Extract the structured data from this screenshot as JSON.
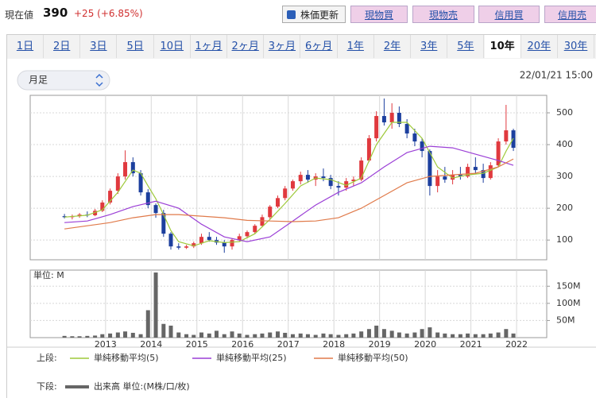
{
  "header": {
    "label": "現在値",
    "price": "390",
    "change": "+25 (+6.85%)",
    "buttons": [
      "株価更新",
      "現物買",
      "現物売",
      "信用買",
      "信用売"
    ]
  },
  "tabs": [
    "1日",
    "2日",
    "3日",
    "5日",
    "10日",
    "1ヶ月",
    "2ヶ月",
    "3ヶ月",
    "6ヶ月",
    "1年",
    "2年",
    "3年",
    "5年",
    "10年",
    "20年",
    "30年"
  ],
  "selected_tab": 13,
  "interval": "月足",
  "timestamp": "22/01/21 15:00",
  "chart_data": [
    {
      "type": "candlestick",
      "up_color": "#e0393e",
      "down_color": "#1c3f9e",
      "xlim": [
        2011.35,
        2022.66
      ],
      "ylim": [
        38,
        555
      ],
      "yticks": [
        100,
        200,
        300,
        400,
        500
      ],
      "grid": true,
      "x": [
        2012.1,
        2012.27,
        2012.43,
        2012.6,
        2012.77,
        2012.93,
        2013.1,
        2013.27,
        2013.43,
        2013.6,
        2013.77,
        2013.93,
        2014.1,
        2014.27,
        2014.43,
        2014.6,
        2014.77,
        2014.93,
        2015.1,
        2015.27,
        2015.43,
        2015.6,
        2015.77,
        2015.93,
        2016.1,
        2016.27,
        2016.43,
        2016.6,
        2016.77,
        2016.93,
        2017.1,
        2017.27,
        2017.43,
        2017.6,
        2017.77,
        2017.93,
        2018.1,
        2018.27,
        2018.43,
        2018.6,
        2018.77,
        2018.93,
        2019.1,
        2019.27,
        2019.43,
        2019.6,
        2019.77,
        2019.93,
        2020.1,
        2020.27,
        2020.43,
        2020.6,
        2020.77,
        2020.93,
        2021.1,
        2021.27,
        2021.43,
        2021.6,
        2021.77,
        2021.93
      ],
      "open": [
        175,
        172,
        175,
        180,
        178,
        192,
        218,
        255,
        300,
        345,
        310,
        250,
        210,
        185,
        120,
        80,
        76,
        80,
        90,
        110,
        100,
        92,
        80,
        100,
        112,
        125,
        145,
        172,
        205,
        232,
        262,
        285,
        305,
        290,
        300,
        295,
        270,
        265,
        285,
        290,
        350,
        420,
        490,
        470,
        500,
        465,
        435,
        410,
        380,
        270,
        300,
        290,
        305,
        300,
        330,
        320,
        295,
        335,
        410,
        445
      ],
      "high": [
        182,
        180,
        185,
        190,
        198,
        225,
        262,
        310,
        382,
        360,
        320,
        260,
        215,
        195,
        125,
        90,
        85,
        95,
        120,
        125,
        110,
        100,
        105,
        120,
        130,
        150,
        180,
        210,
        240,
        270,
        290,
        315,
        320,
        310,
        325,
        305,
        285,
        295,
        300,
        360,
        430,
        505,
        545,
        530,
        520,
        480,
        450,
        420,
        385,
        320,
        330,
        320,
        330,
        340,
        360,
        340,
        345,
        420,
        525,
        450
      ],
      "low": [
        168,
        165,
        170,
        172,
        175,
        188,
        212,
        245,
        290,
        300,
        240,
        200,
        170,
        110,
        70,
        70,
        72,
        75,
        85,
        95,
        85,
        60,
        70,
        95,
        105,
        120,
        140,
        165,
        200,
        225,
        255,
        275,
        280,
        270,
        285,
        260,
        240,
        255,
        270,
        285,
        345,
        410,
        460,
        450,
        455,
        420,
        395,
        360,
        240,
        250,
        280,
        275,
        290,
        295,
        310,
        280,
        290,
        330,
        400,
        380
      ],
      "close": [
        172,
        175,
        180,
        178,
        192,
        218,
        255,
        300,
        345,
        310,
        250,
        210,
        185,
        120,
        80,
        76,
        80,
        90,
        110,
        100,
        92,
        80,
        100,
        112,
        125,
        145,
        172,
        205,
        232,
        262,
        285,
        305,
        290,
        300,
        295,
        270,
        265,
        285,
        290,
        350,
        420,
        490,
        470,
        500,
        465,
        435,
        410,
        380,
        270,
        300,
        290,
        305,
        300,
        330,
        320,
        295,
        335,
        410,
        445,
        390
      ],
      "legend_prefix": "上段:",
      "series": [
        {
          "name": "単純移動平均(5)",
          "color": "#9ec93a",
          "x": [
            2012.1,
            2012.6,
            2012.93,
            2013.27,
            2013.6,
            2013.77,
            2013.93,
            2014.1,
            2014.27,
            2014.43,
            2014.6,
            2014.93,
            2015.27,
            2015.6,
            2015.93,
            2016.27,
            2016.6,
            2016.93,
            2017.27,
            2017.6,
            2017.93,
            2018.27,
            2018.6,
            2018.93,
            2019.27,
            2019.6,
            2019.93,
            2020.27,
            2020.6,
            2020.93,
            2021.27,
            2021.6,
            2021.77,
            2021.93
          ],
          "values": [
            172,
            178,
            195,
            250,
            320,
            310,
            270,
            230,
            180,
            130,
            95,
            82,
            98,
            92,
            95,
            120,
            165,
            215,
            270,
            295,
            290,
            272,
            295,
            400,
            470,
            470,
            420,
            330,
            295,
            305,
            310,
            330,
            380,
            420
          ]
        },
        {
          "name": "単純移動平均(25)",
          "color": "#9b3fd6",
          "x": [
            2012.1,
            2012.6,
            2013.1,
            2013.6,
            2014.1,
            2014.6,
            2015.1,
            2015.6,
            2016.1,
            2016.6,
            2017.1,
            2017.6,
            2018.1,
            2018.6,
            2019.1,
            2019.6,
            2020.1,
            2020.6,
            2021.1,
            2021.6,
            2021.93
          ],
          "values": [
            155,
            160,
            180,
            205,
            222,
            200,
            150,
            110,
            95,
            110,
            160,
            210,
            250,
            280,
            330,
            375,
            395,
            390,
            370,
            350,
            335
          ]
        },
        {
          "name": "単純移動平均(50)",
          "color": "#e07a4a",
          "x": [
            2012.1,
            2012.6,
            2013.1,
            2013.6,
            2014.1,
            2014.6,
            2015.1,
            2015.6,
            2016.1,
            2016.6,
            2017.1,
            2017.6,
            2018.1,
            2018.6,
            2019.1,
            2019.6,
            2020.1,
            2020.6,
            2021.1,
            2021.6,
            2021.93
          ],
          "values": [
            135,
            145,
            155,
            170,
            180,
            180,
            175,
            170,
            162,
            160,
            158,
            160,
            170,
            200,
            240,
            280,
            300,
            305,
            310,
            330,
            355
          ]
        }
      ]
    },
    {
      "type": "bar",
      "color": "#666666",
      "axis_unit_label": "単位: M",
      "xlim": [
        2011.35,
        2022.66
      ],
      "xticks": [
        2013,
        2014,
        2015,
        2016,
        2017,
        2018,
        2019,
        2020,
        2021,
        2022
      ],
      "ylim": [
        0,
        197
      ],
      "yticks": [
        {
          "value": 50,
          "label": "50M"
        },
        {
          "value": 100,
          "label": "100M"
        },
        {
          "value": 150,
          "label": "150M"
        }
      ],
      "grid": true,
      "x": [
        2012.1,
        2012.27,
        2012.43,
        2012.6,
        2012.77,
        2012.93,
        2013.1,
        2013.27,
        2013.43,
        2013.6,
        2013.77,
        2013.93,
        2014.1,
        2014.27,
        2014.43,
        2014.6,
        2014.77,
        2014.93,
        2015.1,
        2015.27,
        2015.43,
        2015.6,
        2015.77,
        2015.93,
        2016.1,
        2016.27,
        2016.43,
        2016.6,
        2016.77,
        2016.93,
        2017.1,
        2017.27,
        2017.43,
        2017.6,
        2017.77,
        2017.93,
        2018.1,
        2018.27,
        2018.43,
        2018.6,
        2018.77,
        2018.93,
        2019.1,
        2019.27,
        2019.43,
        2019.6,
        2019.77,
        2019.93,
        2020.1,
        2020.27,
        2020.43,
        2020.6,
        2020.77,
        2020.93,
        2021.1,
        2021.27,
        2021.43,
        2021.6,
        2021.77,
        2021.93
      ],
      "values": [
        5,
        4,
        4,
        5,
        6,
        10,
        12,
        15,
        18,
        14,
        10,
        80,
        190,
        40,
        35,
        15,
        10,
        8,
        15,
        12,
        20,
        10,
        18,
        12,
        8,
        10,
        12,
        15,
        18,
        14,
        10,
        12,
        10,
        8,
        12,
        10,
        8,
        10,
        12,
        18,
        25,
        35,
        25,
        20,
        15,
        12,
        15,
        25,
        30,
        15,
        12,
        10,
        10,
        12,
        10,
        10,
        12,
        15,
        25,
        12
      ],
      "legend_prefix": "下段:",
      "legend_label": "出来高 単位:(M株/口/枚)"
    }
  ]
}
